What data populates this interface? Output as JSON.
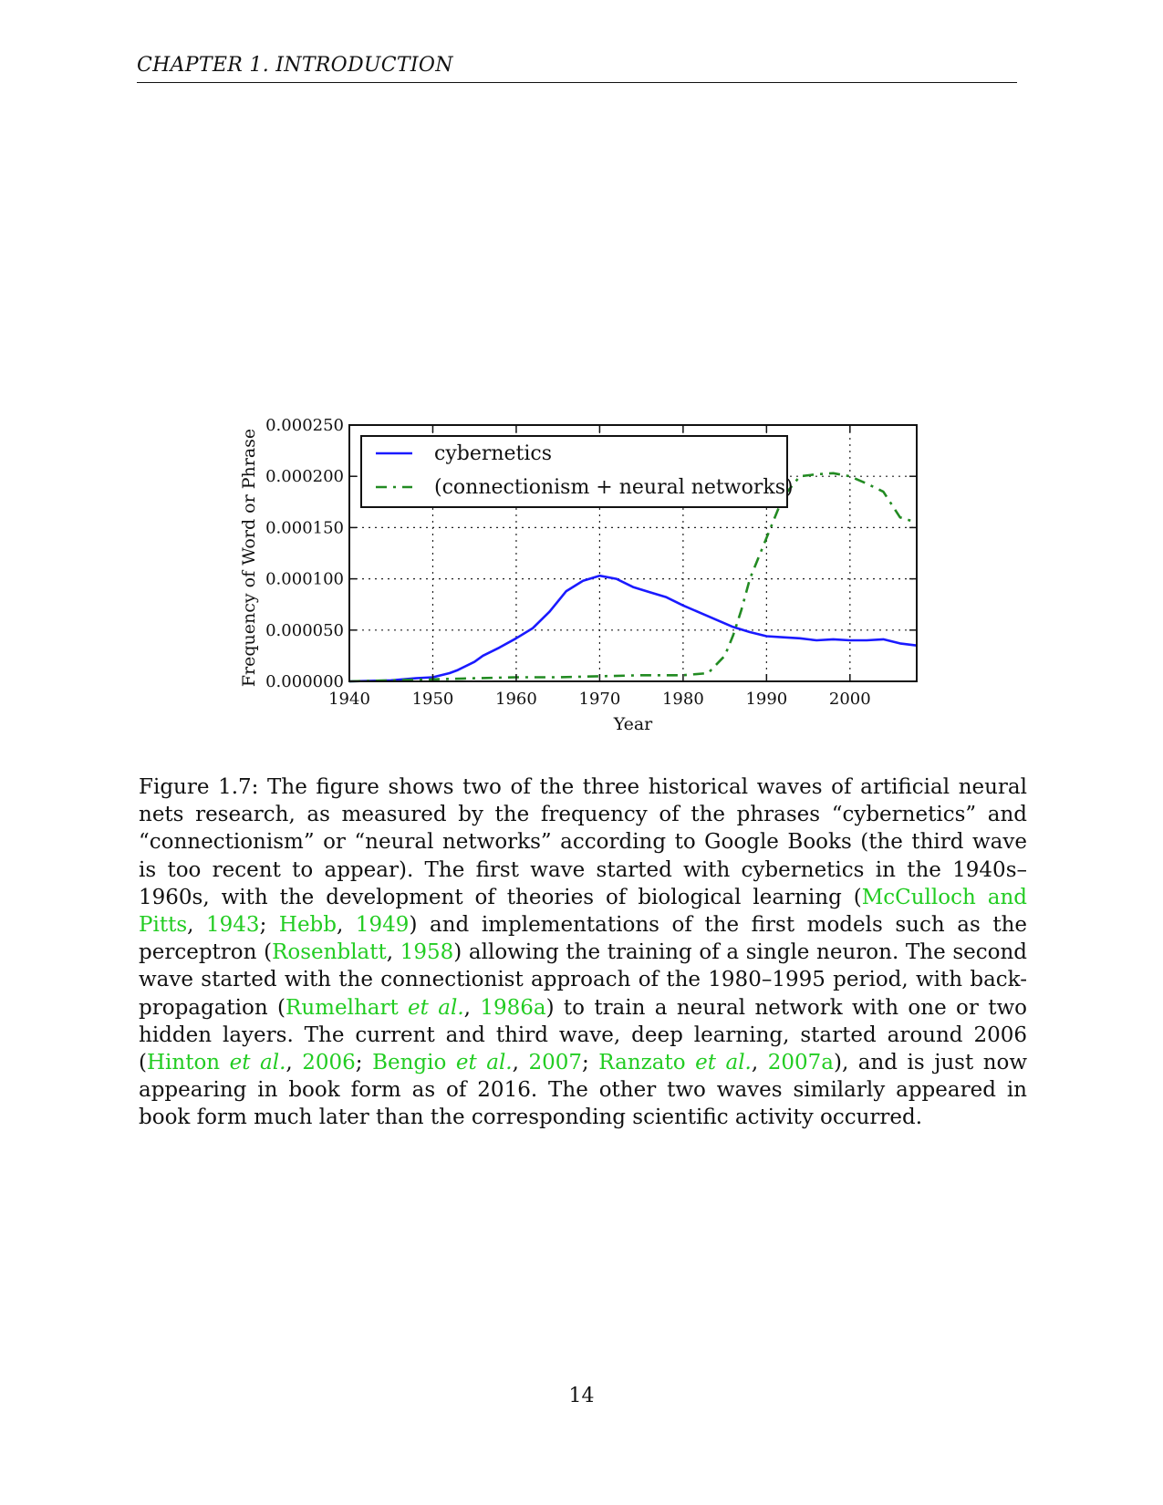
{
  "header": {
    "running_head": "CHAPTER 1.   INTRODUCTION"
  },
  "chart_data": {
    "type": "line",
    "xlabel": "Year",
    "ylabel": "Frequency of Word or Phrase",
    "xlim": [
      1940,
      2008
    ],
    "ylim": [
      0,
      0.00025
    ],
    "x_ticks": [
      "1940",
      "1950",
      "1960",
      "1970",
      "1980",
      "1990",
      "2000"
    ],
    "y_ticks": [
      "0.000000",
      "0.000050",
      "0.000100",
      "0.000150",
      "0.000200",
      "0.000250"
    ],
    "grid": "dotted",
    "legend_position": "top-left",
    "series": [
      {
        "name": "cybernetics",
        "color": "#1a1aff",
        "style": "solid",
        "x": [
          1940,
          1945,
          1948,
          1950,
          1952,
          1953,
          1955,
          1956,
          1958,
          1960,
          1962,
          1964,
          1966,
          1968,
          1970,
          1972,
          1974,
          1976,
          1978,
          1980,
          1982,
          1984,
          1986,
          1988,
          1990,
          1992,
          1994,
          1996,
          1998,
          2000,
          2002,
          2004,
          2006,
          2008
        ],
        "y": [
          0.0,
          1e-06,
          3e-06,
          4e-06,
          8e-06,
          1.1e-05,
          1.9e-05,
          2.5e-05,
          3.3e-05,
          4.2e-05,
          5.2e-05,
          6.8e-05,
          8.8e-05,
          9.8e-05,
          0.000103,
          0.0001,
          9.2e-05,
          8.7e-05,
          8.2e-05,
          7.4e-05,
          6.7e-05,
          6e-05,
          5.3e-05,
          4.8e-05,
          4.4e-05,
          4.3e-05,
          4.2e-05,
          4e-05,
          4.1e-05,
          4e-05,
          4e-05,
          4.1e-05,
          3.7e-05,
          3.5e-05
        ]
      },
      {
        "name": "(connectionism + neural networks)",
        "color": "#228b22",
        "style": "dash-dot",
        "x": [
          1940,
          1945,
          1950,
          1955,
          1960,
          1965,
          1970,
          1975,
          1980,
          1983,
          1985,
          1986,
          1987,
          1988,
          1990,
          1992,
          1994,
          1996,
          1998,
          2000,
          2002,
          2004,
          2006,
          2008
        ],
        "y": [
          0.0,
          1e-06,
          2e-06,
          3e-06,
          4e-06,
          4e-06,
          5e-06,
          6e-06,
          6e-06,
          8e-06,
          2.5e-05,
          4.5e-05,
          7e-05,
          0.0001,
          0.00014,
          0.00018,
          0.0002,
          0.000202,
          0.000203,
          0.0002,
          0.000193,
          0.000185,
          0.00016,
          0.000155
        ]
      }
    ]
  },
  "caption": {
    "p1": "Figure 1.7: The figure shows two of the three historical waves of artificial neural nets research, as measured by the frequency of the phrases “cybernetics” and “connectionism” or “neural networks” according to Google Books (the third wave is too recent to appear). The first wave started with cybernetics in the 1940s–1960s, with the development of theories of biological learning (",
    "c1": "McCulloch and Pitts",
    "s1": ", ",
    "c1y": "1943",
    "s2": "; ",
    "c2": "Hebb",
    "s3": ", ",
    "c2y": "1949",
    "p2": ") and implementations of the first models such as the perceptron (",
    "c3": "Rosenblatt",
    "s4": ", ",
    "c3y": "1958",
    "p3": ") allowing the training of a single neuron. The second wave started with the connectionist approach of the 1980–1995 period, with back-propagation (",
    "c4": "Rumelhart",
    "c4etal": " et al.",
    "s5": ", ",
    "c4y": "1986a",
    "p4": ") to train a neural network with one or two hidden layers. The current and third wave, deep learning, started around 2006 (",
    "c5": "Hinton",
    "c5etal": " et al.",
    "s6": ", ",
    "c5y": "2006",
    "s7": "; ",
    "c6": "Bengio",
    "c6etal": " et al.",
    "s8": ", ",
    "c6y": "2007",
    "s9": "; ",
    "c7": "Ranzato",
    "c7etal": " et al.",
    "s10": ", ",
    "c7y": "2007a",
    "p5": "), and is just now appearing in book form as of 2016. The other two waves similarly appeared in book form much later than the corresponding scientific activity occurred."
  },
  "footer": {
    "page_number": "14"
  }
}
